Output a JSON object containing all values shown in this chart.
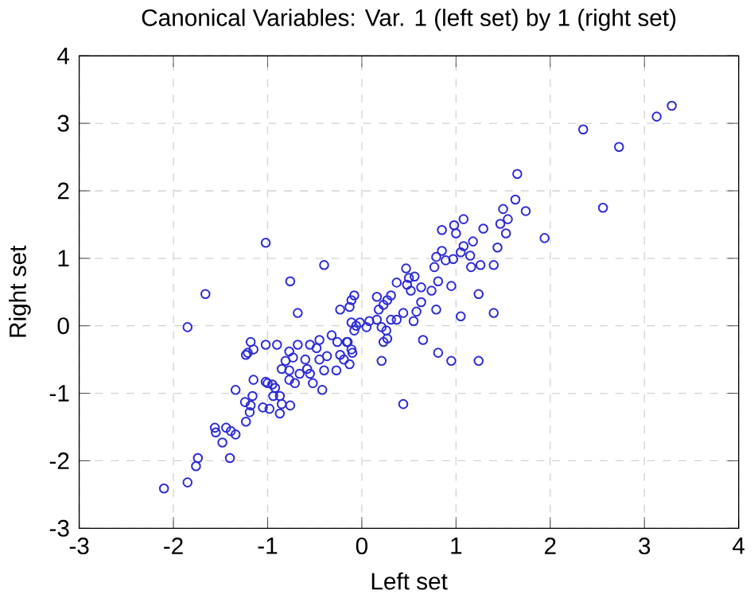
{
  "chart_data": {
    "type": "scatter",
    "title": "Canonical Variables: Var.   1 (left set) by   1 (right set)",
    "xlabel": "Left set",
    "ylabel": "Right set",
    "xlim": [
      -3,
      4
    ],
    "ylim": [
      -3,
      4
    ],
    "xticks": [
      -3,
      -2,
      -1,
      0,
      1,
      2,
      3,
      4
    ],
    "yticks": [
      -3,
      -2,
      -1,
      0,
      1,
      2,
      3,
      4
    ],
    "grid": true,
    "marker": "circle",
    "series": [
      {
        "color": "#2b2bd9",
        "x": [
          2.35,
          2.73,
          3.13,
          3.29,
          1.65,
          1.63,
          1.5,
          1.74,
          2.56,
          1.94,
          1.47,
          1.55,
          1.53,
          1.44,
          1.4,
          1.4,
          1.29,
          -0.4,
          0.85,
          0.98,
          1.08,
          1.0,
          0.85,
          0.79,
          0.89,
          0.97,
          1.05,
          1.08,
          1.18,
          1.15,
          1.16,
          1.26,
          0.77,
          0.47,
          0.5,
          0.56,
          0.37,
          0.48,
          0.52,
          0.63,
          0.74,
          0.81,
          0.95,
          1.24,
          0.63,
          0.58,
          0.44,
          0.79,
          1.05,
          0.55,
          0.65,
          0.81,
          0.95,
          1.24,
          0.21,
          0.44,
          0.16,
          0.31,
          0.27,
          0.23,
          0.18,
          0.08,
          0.16,
          0.31,
          0.37,
          0.21,
          0.26,
          0.27,
          0.23,
          0.05,
          -0.02,
          -0.08,
          -0.11,
          -0.13,
          -0.23,
          -0.11,
          -0.08,
          -0.06,
          -0.16,
          -0.11,
          -1.02,
          -1.66,
          -1.85,
          -0.76,
          -0.68,
          -1.18,
          -1.15,
          -1.23,
          -1.02,
          -0.9,
          -0.68,
          -0.77,
          -0.55,
          -0.45,
          -0.32,
          -0.26,
          -0.15,
          -0.1,
          -0.23,
          -0.37,
          -0.48,
          -0.6,
          -0.73,
          -0.81,
          -0.58,
          -0.45,
          -0.19,
          -0.13,
          -0.27,
          -0.4,
          -0.85,
          -0.77,
          -0.66,
          -0.55,
          -1.15,
          -1.02,
          -0.95,
          -0.77,
          -0.71,
          -0.52,
          -0.42,
          -1.34,
          -0.92,
          -1.0,
          -1.16,
          -1.24,
          -1.18,
          -1.19,
          -1.05,
          -0.98,
          -0.94,
          -0.87,
          -0.85,
          -0.87,
          -0.76,
          -1.23,
          -1.56,
          -1.55,
          -1.44,
          -1.39,
          -1.34,
          -1.48,
          -1.4,
          -1.74,
          -1.76,
          -1.85,
          -2.1,
          -1.21
        ],
        "values": [
          2.91,
          2.65,
          3.1,
          3.26,
          2.25,
          1.87,
          1.73,
          1.7,
          1.75,
          1.3,
          1.51,
          1.58,
          1.37,
          1.16,
          0.9,
          0.19,
          1.44,
          0.9,
          1.42,
          1.49,
          1.58,
          1.37,
          1.11,
          1.02,
          0.97,
          0.99,
          1.09,
          1.18,
          1.25,
          1.04,
          0.87,
          0.9,
          0.87,
          0.85,
          0.71,
          0.73,
          0.64,
          0.61,
          0.52,
          0.57,
          0.52,
          0.66,
          0.59,
          0.47,
          0.35,
          0.21,
          0.19,
          0.24,
          0.14,
          0.07,
          -0.21,
          -0.4,
          -0.52,
          -0.52,
          -0.52,
          -1.16,
          0.43,
          0.45,
          0.38,
          0.31,
          0.24,
          0.07,
          0.09,
          0.09,
          0.09,
          -0.02,
          -0.07,
          -0.19,
          -0.24,
          -0.02,
          0.05,
          0.45,
          0.38,
          0.28,
          0.24,
          0.05,
          -0.07,
          0.0,
          -0.24,
          -0.35,
          1.23,
          0.47,
          -0.02,
          0.66,
          0.19,
          -0.24,
          -0.35,
          -0.43,
          -0.28,
          -0.28,
          -0.28,
          -0.38,
          -0.28,
          -0.21,
          -0.14,
          -0.24,
          -0.24,
          -0.4,
          -0.43,
          -0.45,
          -0.33,
          -0.5,
          -0.47,
          -0.52,
          -0.64,
          -0.5,
          -0.5,
          -0.57,
          -0.66,
          -0.66,
          -0.64,
          -0.66,
          -0.71,
          -0.71,
          -0.8,
          -0.83,
          -0.87,
          -0.8,
          -0.85,
          -0.85,
          -0.95,
          -0.95,
          -0.92,
          -0.85,
          -1.04,
          -1.13,
          -1.18,
          -1.28,
          -1.21,
          -1.23,
          -1.04,
          -1.04,
          -1.16,
          -1.3,
          -1.18,
          -1.42,
          -1.51,
          -1.58,
          -1.51,
          -1.56,
          -1.61,
          -1.73,
          -1.96,
          -1.96,
          -2.08,
          -2.32,
          -2.41,
          -0.4
        ]
      }
    ]
  }
}
